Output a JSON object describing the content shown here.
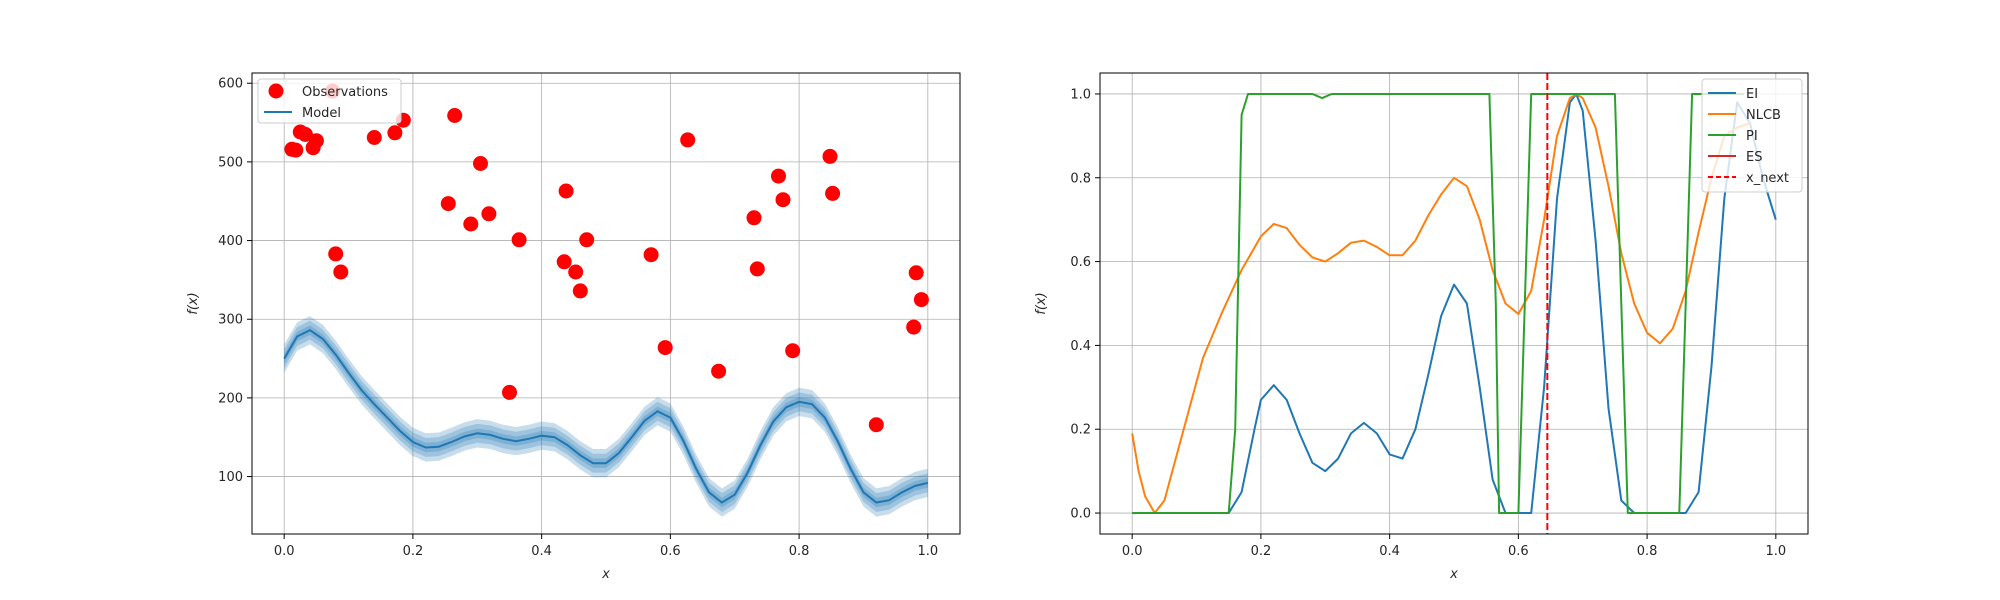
{
  "colors": {
    "observations": "#ff0000",
    "model": "#1f77b4",
    "EI": "#1f77b4",
    "NLCB": "#ff7f0e",
    "PI": "#2ca02c",
    "ES": "#d62728",
    "x_next": "#ff0000",
    "grid": "#b0b0b0"
  },
  "chart_data": [
    {
      "type": "scatter",
      "xlabel": "x",
      "ylabel": "f(x)",
      "xlim": [
        -0.05,
        1.05
      ],
      "ylim": [
        27,
        613
      ],
      "xticks": [
        0.0,
        0.2,
        0.4,
        0.6,
        0.8,
        1.0
      ],
      "xtick_labels": [
        "0.0",
        "0.2",
        "0.4",
        "0.6",
        "0.8",
        "1.0"
      ],
      "yticks": [
        100,
        200,
        300,
        400,
        500,
        600
      ],
      "ytick_labels": [
        "100",
        "200",
        "300",
        "400",
        "500",
        "600"
      ],
      "grid": true,
      "legend_position": "top-left",
      "legend": [
        "Observations",
        "Model"
      ],
      "series": [
        {
          "name": "Observations",
          "type": "scatter",
          "x": [
            0.012,
            0.018,
            0.025,
            0.033,
            0.045,
            0.05,
            0.075,
            0.08,
            0.088,
            0.14,
            0.172,
            0.185,
            0.255,
            0.265,
            0.29,
            0.305,
            0.318,
            0.35,
            0.365,
            0.435,
            0.438,
            0.453,
            0.46,
            0.47,
            0.57,
            0.592,
            0.627,
            0.675,
            0.73,
            0.735,
            0.768,
            0.775,
            0.79,
            0.848,
            0.852,
            0.92,
            0.978,
            0.982,
            0.99
          ],
          "y": [
            516,
            515,
            538,
            535,
            518,
            527,
            590,
            383,
            360,
            531,
            537,
            553,
            447,
            559,
            421,
            498,
            434,
            207,
            401,
            373,
            463,
            360,
            336,
            401,
            382,
            264,
            528,
            234,
            429,
            364,
            482,
            452,
            260,
            507,
            460,
            166,
            290,
            359,
            325
          ]
        },
        {
          "name": "Model",
          "type": "line",
          "x": [
            0.0,
            0.02,
            0.04,
            0.06,
            0.08,
            0.1,
            0.12,
            0.14,
            0.16,
            0.18,
            0.2,
            0.22,
            0.24,
            0.26,
            0.28,
            0.3,
            0.32,
            0.34,
            0.36,
            0.38,
            0.4,
            0.42,
            0.44,
            0.46,
            0.48,
            0.5,
            0.52,
            0.54,
            0.56,
            0.58,
            0.6,
            0.62,
            0.64,
            0.66,
            0.68,
            0.7,
            0.72,
            0.74,
            0.76,
            0.78,
            0.8,
            0.82,
            0.84,
            0.86,
            0.88,
            0.9,
            0.92,
            0.94,
            0.96,
            0.98,
            1.0
          ],
          "y": [
            250,
            278,
            286,
            275,
            255,
            232,
            210,
            192,
            175,
            158,
            144,
            137,
            138,
            144,
            151,
            155,
            153,
            148,
            145,
            148,
            152,
            150,
            140,
            127,
            117,
            117,
            130,
            150,
            171,
            183,
            175,
            146,
            110,
            80,
            67,
            77,
            105,
            140,
            170,
            188,
            195,
            192,
            175,
            145,
            110,
            80,
            67,
            70,
            80,
            88,
            92
          ]
        }
      ],
      "confidence_band_halfwidths": [
        6,
        12,
        18
      ]
    },
    {
      "type": "line",
      "xlabel": "x",
      "ylabel": "f(x)",
      "xlim": [
        -0.05,
        1.05
      ],
      "ylim": [
        -0.05,
        1.05
      ],
      "xticks": [
        0.0,
        0.2,
        0.4,
        0.6,
        0.8,
        1.0
      ],
      "xtick_labels": [
        "0.0",
        "0.2",
        "0.4",
        "0.6",
        "0.8",
        "1.0"
      ],
      "yticks": [
        0.0,
        0.2,
        0.4,
        0.6,
        0.8,
        1.0
      ],
      "ytick_labels": [
        "0.0",
        "0.2",
        "0.4",
        "0.6",
        "0.8",
        "1.0"
      ],
      "grid": true,
      "legend_position": "top-right",
      "legend": [
        "EI",
        "NLCB",
        "PI",
        "ES",
        "x_next"
      ],
      "x_next": 0.645,
      "series": [
        {
          "name": "EI",
          "x": [
            0.0,
            0.15,
            0.17,
            0.19,
            0.2,
            0.22,
            0.24,
            0.26,
            0.28,
            0.3,
            0.32,
            0.34,
            0.36,
            0.38,
            0.4,
            0.42,
            0.44,
            0.46,
            0.48,
            0.5,
            0.52,
            0.54,
            0.56,
            0.58,
            0.6,
            0.62,
            0.64,
            0.66,
            0.68,
            0.69,
            0.7,
            0.72,
            0.74,
            0.76,
            0.78,
            0.86,
            0.88,
            0.9,
            0.92,
            0.94,
            0.96,
            0.98,
            1.0
          ],
          "y": [
            0.0,
            0.0,
            0.05,
            0.2,
            0.27,
            0.305,
            0.27,
            0.19,
            0.12,
            0.1,
            0.13,
            0.19,
            0.215,
            0.19,
            0.14,
            0.13,
            0.2,
            0.33,
            0.47,
            0.545,
            0.5,
            0.3,
            0.08,
            0.0,
            0.0,
            0.0,
            0.3,
            0.75,
            0.98,
            1.0,
            0.96,
            0.65,
            0.25,
            0.03,
            0.0,
            0.0,
            0.05,
            0.35,
            0.75,
            0.98,
            0.93,
            0.8,
            0.7
          ]
        },
        {
          "name": "NLCB",
          "x": [
            0.0,
            0.01,
            0.02,
            0.035,
            0.05,
            0.08,
            0.11,
            0.14,
            0.17,
            0.2,
            0.22,
            0.24,
            0.26,
            0.28,
            0.3,
            0.32,
            0.34,
            0.36,
            0.38,
            0.4,
            0.42,
            0.44,
            0.46,
            0.48,
            0.5,
            0.52,
            0.54,
            0.56,
            0.58,
            0.6,
            0.62,
            0.64,
            0.66,
            0.68,
            0.69,
            0.7,
            0.72,
            0.74,
            0.76,
            0.78,
            0.8,
            0.82,
            0.84,
            0.86,
            0.88,
            0.9,
            0.92,
            0.94,
            0.96
          ],
          "y": [
            0.19,
            0.1,
            0.04,
            0.0,
            0.03,
            0.2,
            0.37,
            0.48,
            0.58,
            0.66,
            0.69,
            0.68,
            0.64,
            0.61,
            0.6,
            0.62,
            0.645,
            0.65,
            0.635,
            0.615,
            0.615,
            0.65,
            0.71,
            0.76,
            0.8,
            0.78,
            0.7,
            0.58,
            0.5,
            0.475,
            0.53,
            0.7,
            0.9,
            0.99,
            1.0,
            0.99,
            0.92,
            0.78,
            0.62,
            0.5,
            0.43,
            0.405,
            0.44,
            0.53,
            0.67,
            0.8,
            0.9,
            0.92,
            0.93
          ]
        },
        {
          "name": "PI",
          "x": [
            0.0,
            0.15,
            0.16,
            0.17,
            0.18,
            0.2,
            0.28,
            0.295,
            0.31,
            0.42,
            0.43,
            0.555,
            0.565,
            0.57,
            0.6,
            0.61,
            0.62,
            0.63,
            0.75,
            0.76,
            0.77,
            0.85,
            0.86,
            0.87,
            0.95
          ],
          "y": [
            0.0,
            0.0,
            0.2,
            0.95,
            1.0,
            1.0,
            1.0,
            0.99,
            1.0,
            1.0,
            1.0,
            1.0,
            0.5,
            0.0,
            0.0,
            0.5,
            1.0,
            1.0,
            1.0,
            0.5,
            0.0,
            0.0,
            0.5,
            1.0,
            1.0
          ]
        },
        {
          "name": "ES",
          "x": [],
          "y": []
        }
      ]
    }
  ]
}
